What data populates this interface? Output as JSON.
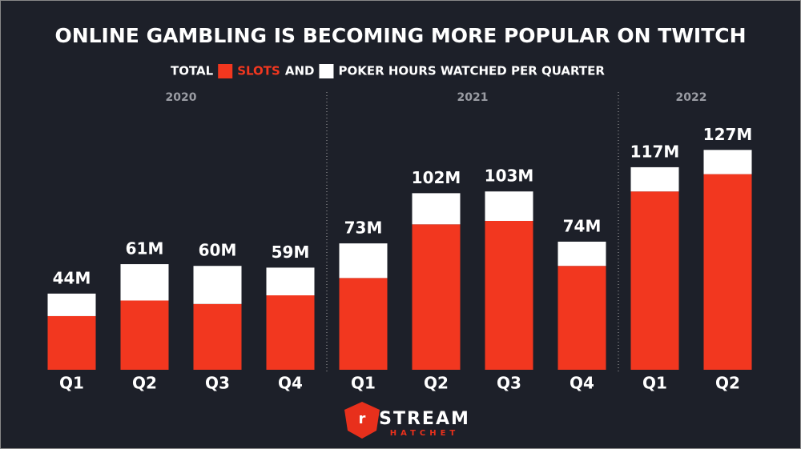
{
  "chart_data": {
    "type": "bar",
    "stacked": true,
    "title": "ONLINE GAMBLING IS BECOMING MORE POPULAR ON TWITCH",
    "legend_text": [
      "TOTAL",
      "AND"
    ],
    "groups": [
      {
        "name": "2020",
        "categories": [
          "Q1",
          "Q2",
          "Q3",
          "Q4"
        ]
      },
      {
        "name": "2021",
        "categories": [
          "Q1",
          "Q2",
          "Q3",
          "Q4"
        ]
      },
      {
        "name": "2022",
        "categories": [
          "Q1",
          "Q2"
        ]
      }
    ],
    "series": [
      {
        "name": "SLOTS",
        "color": "#f2371f",
        "values": [
          31,
          40,
          38,
          43,
          53,
          84,
          86,
          60,
          103,
          113
        ]
      },
      {
        "name": "POKER HOURS WATCHED PER QUARTER",
        "color": "#ffffff",
        "values": [
          13,
          21,
          22,
          16,
          20,
          18,
          17,
          14,
          14,
          14
        ]
      }
    ],
    "totals": {
      "values": [
        44,
        61,
        60,
        59,
        73,
        102,
        103,
        74,
        117,
        127
      ],
      "value_labels": [
        "44M",
        "61M",
        "60M",
        "59M",
        "73M",
        "102M",
        "103M",
        "74M",
        "117M",
        "127M"
      ]
    },
    "ylim": [
      0,
      135
    ],
    "brand": {
      "name": "STREAM",
      "tagline": "HATCHET"
    }
  }
}
